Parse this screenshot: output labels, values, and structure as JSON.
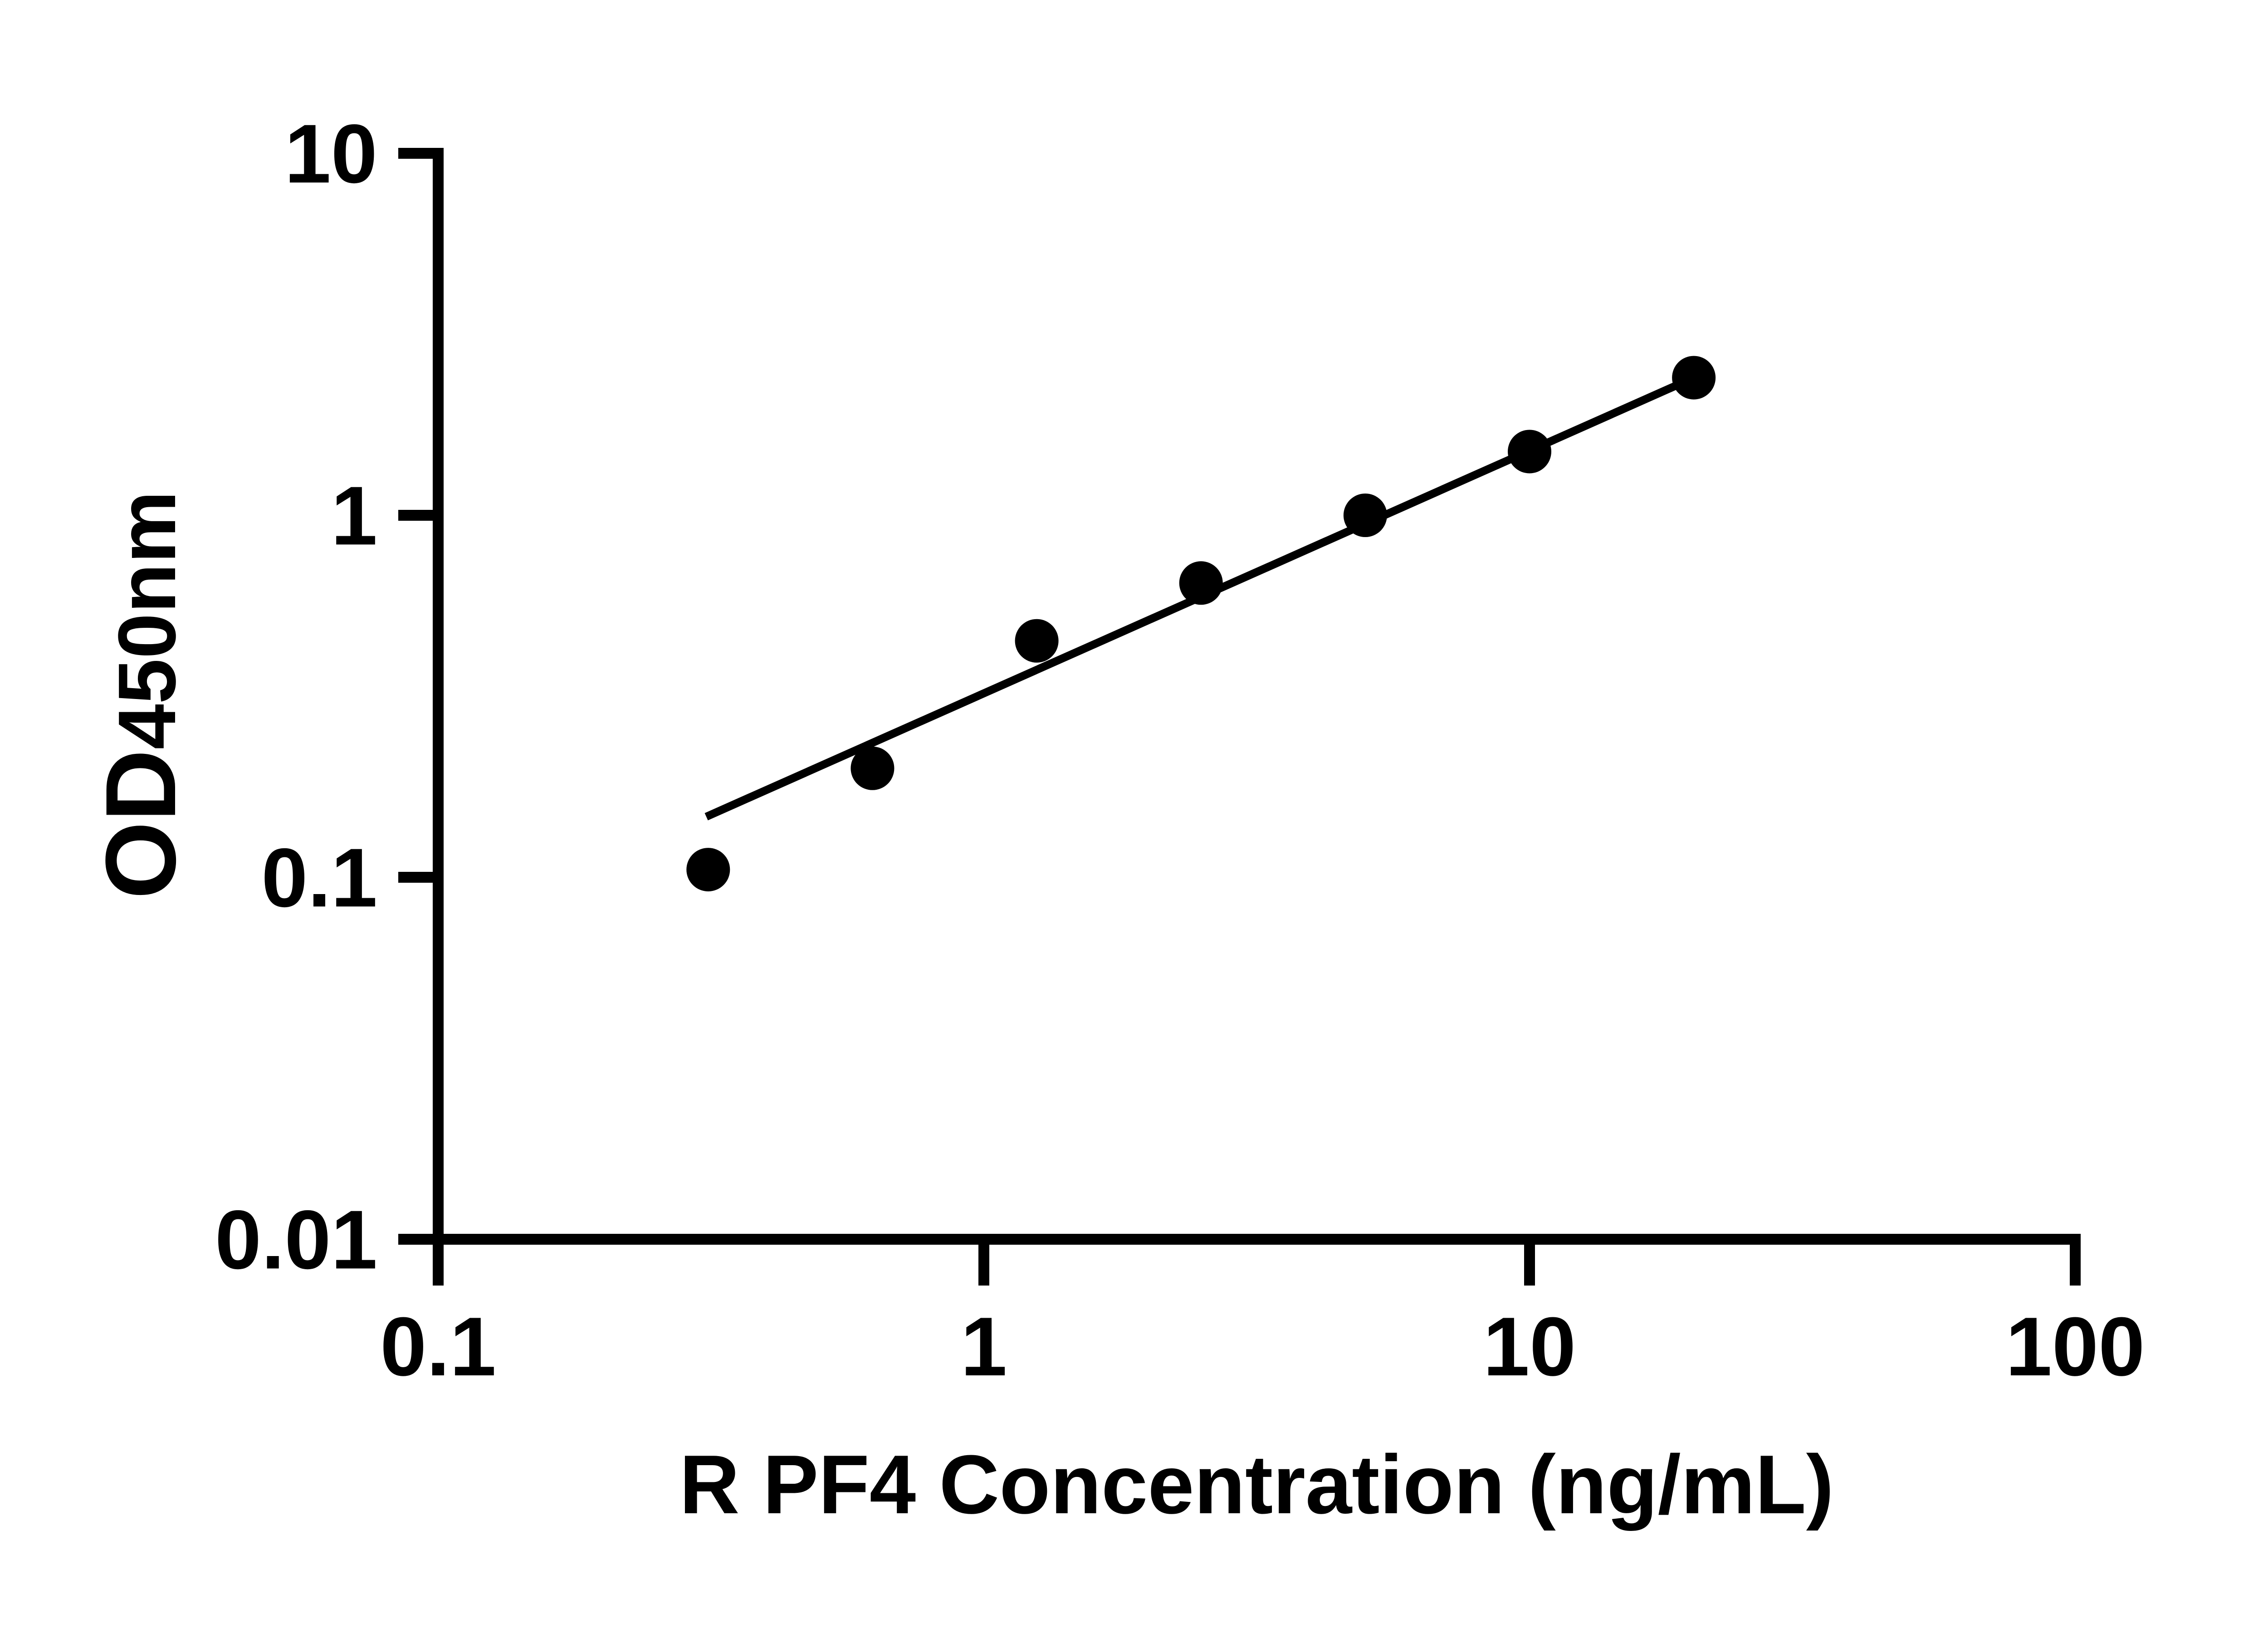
{
  "figure": {
    "background_color": "#ffffff",
    "ink_color": "#000000"
  },
  "chart_data": {
    "type": "scatter",
    "title": "",
    "xlabel": "R PF4 Concentration (ng/mL)",
    "ylabel_main": "OD",
    "ylabel_sub": "450nm",
    "x_scale": "log",
    "y_scale": "log",
    "xlim": [
      0.1,
      100
    ],
    "ylim": [
      0.01,
      10
    ],
    "grid": false,
    "legend": "none",
    "x_ticks": [
      0.1,
      1,
      10,
      100
    ],
    "x_tick_labels": [
      "0.1",
      "1",
      "10",
      "100"
    ],
    "y_ticks": [
      10,
      1,
      0.1,
      0.01
    ],
    "y_tick_labels": [
      "10",
      "1",
      "0.1",
      "0.01"
    ],
    "series": [
      {
        "name": "standard-curve-fit-line",
        "type": "line",
        "color": "#000000",
        "x": [
          0.31,
          20
        ],
        "y": [
          0.147,
          2.4
        ]
      },
      {
        "name": "standard-points",
        "type": "scatter",
        "marker": "filled-circle",
        "color": "#000000",
        "x": [
          0.3125,
          0.625,
          1.25,
          2.5,
          5,
          10,
          20
        ],
        "y": [
          0.105,
          0.2,
          0.45,
          0.65,
          1.0,
          1.5,
          2.4
        ]
      }
    ]
  }
}
